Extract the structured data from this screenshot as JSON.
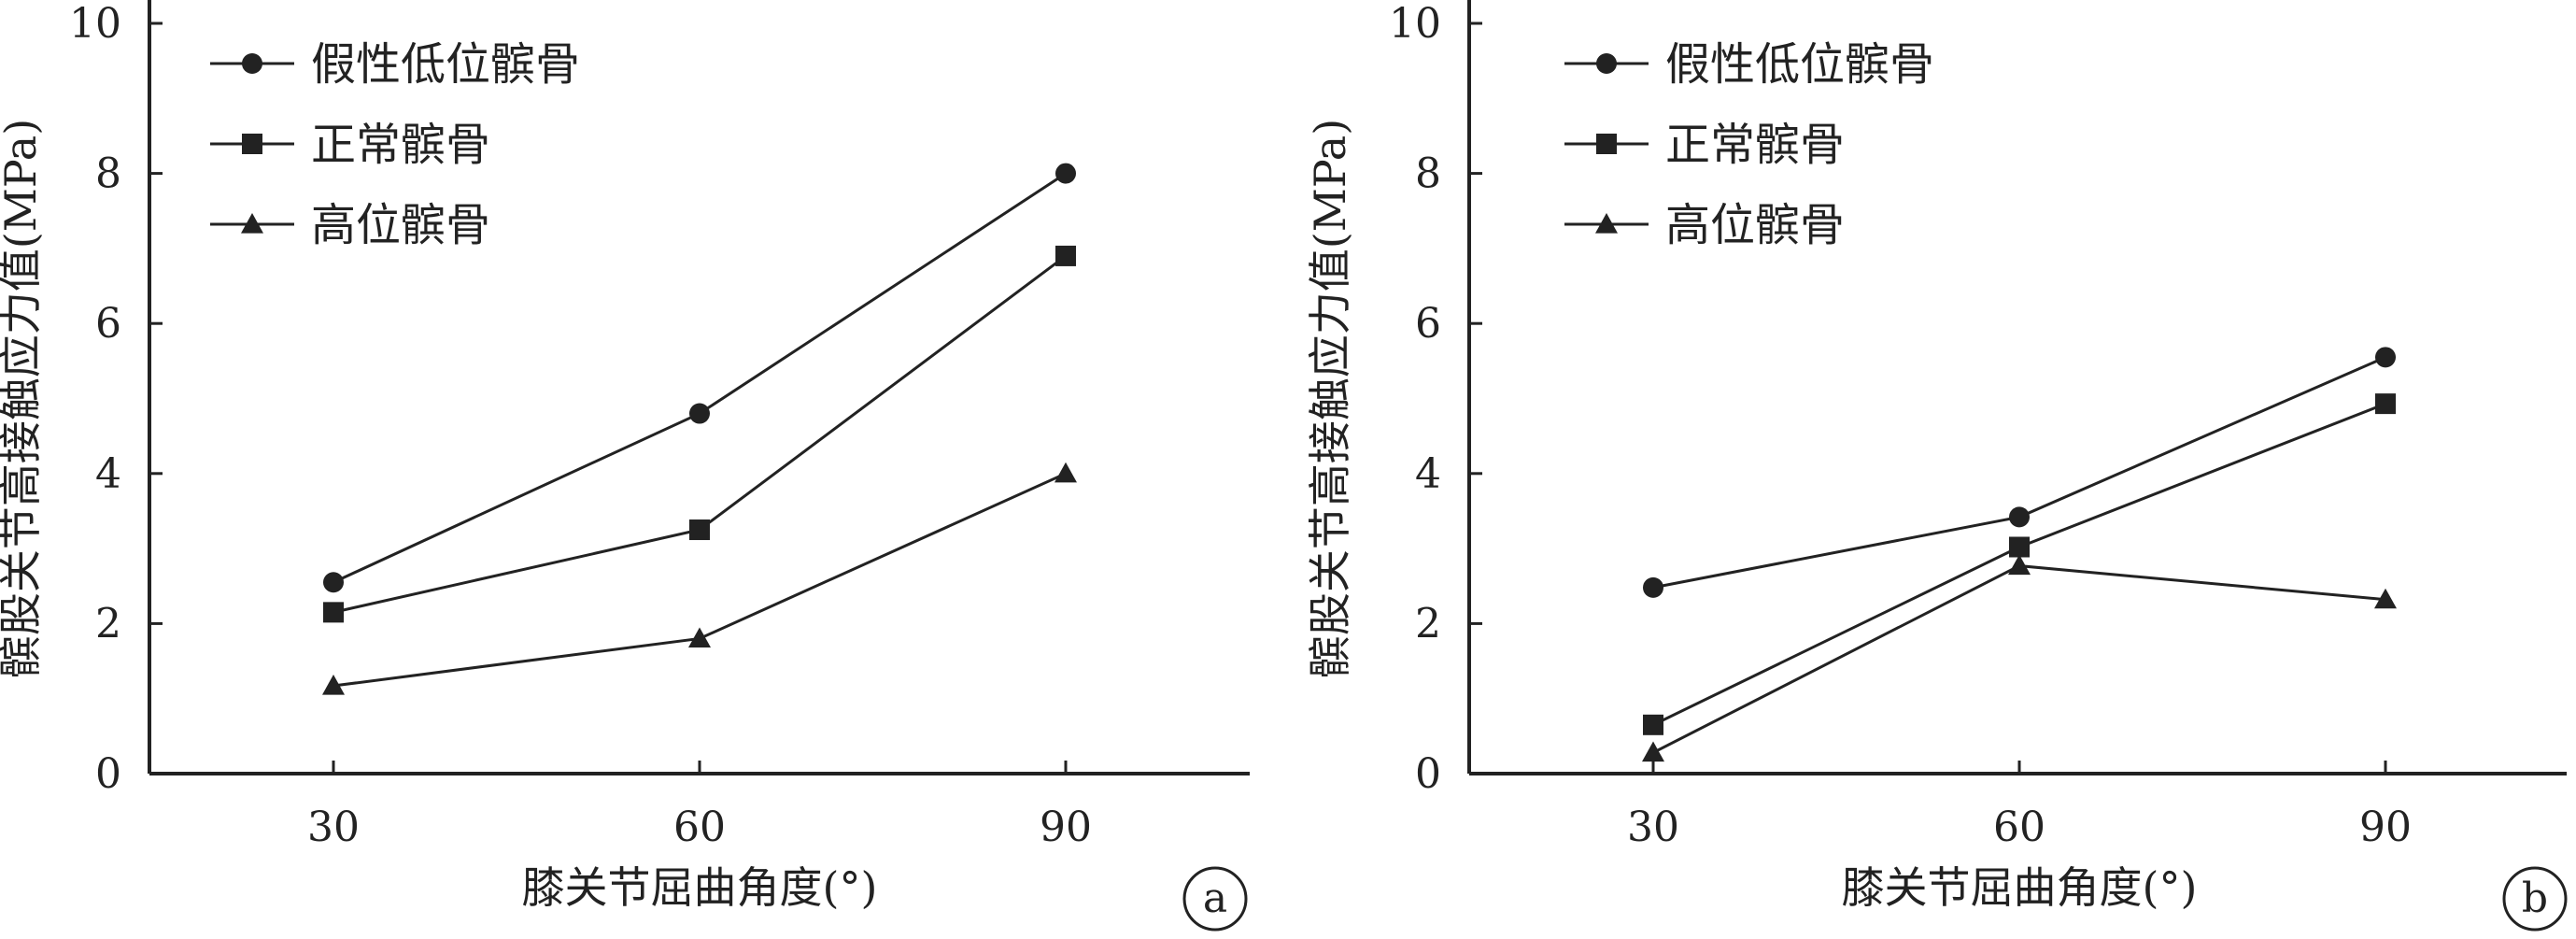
{
  "chart_data": [
    {
      "type": "line",
      "panel_label": "a",
      "xlabel": "膝关节屈曲角度(°)",
      "ylabel": "髌股关节高接触应力值(MPa)",
      "categories": [
        "30",
        "60",
        "90"
      ],
      "x": [
        30,
        60,
        90
      ],
      "ylim": [
        0,
        10
      ],
      "yticks": [
        0,
        2,
        4,
        6,
        8,
        10
      ],
      "ytick_labels": [
        "0",
        "2",
        "4",
        "6",
        "8",
        "10"
      ],
      "grid": false,
      "legend_position": "top-left",
      "series": [
        {
          "name": "假性低位髌骨",
          "marker": "circle",
          "values": [
            2.55,
            4.8,
            8.0
          ]
        },
        {
          "name": "正常髌骨",
          "marker": "square",
          "values": [
            2.15,
            3.25,
            6.9
          ]
        },
        {
          "name": "高位髌骨",
          "marker": "triangle",
          "values": [
            1.17,
            1.8,
            4.0
          ]
        }
      ]
    },
    {
      "type": "line",
      "panel_label": "b",
      "xlabel": "膝关节屈曲角度(°)",
      "ylabel": "髌股关节高接触应力值(MPa)",
      "categories": [
        "30",
        "60",
        "90"
      ],
      "x": [
        30,
        60,
        90
      ],
      "ylim": [
        0,
        10
      ],
      "yticks": [
        0,
        2,
        4,
        6,
        8,
        10
      ],
      "ytick_labels": [
        "0",
        "2",
        "4",
        "6",
        "8",
        "10"
      ],
      "grid": false,
      "legend_position": "top-left",
      "series": [
        {
          "name": "假性低位髌骨",
          "marker": "circle",
          "values": [
            2.48,
            3.42,
            5.55
          ]
        },
        {
          "name": "正常髌骨",
          "marker": "square",
          "values": [
            0.65,
            3.02,
            4.93
          ]
        },
        {
          "name": "高位髌骨",
          "marker": "triangle",
          "values": [
            0.28,
            2.77,
            2.32
          ]
        }
      ]
    }
  ],
  "colors": {
    "line": "#222222",
    "marker": "#222222",
    "background": "#ffffff"
  }
}
